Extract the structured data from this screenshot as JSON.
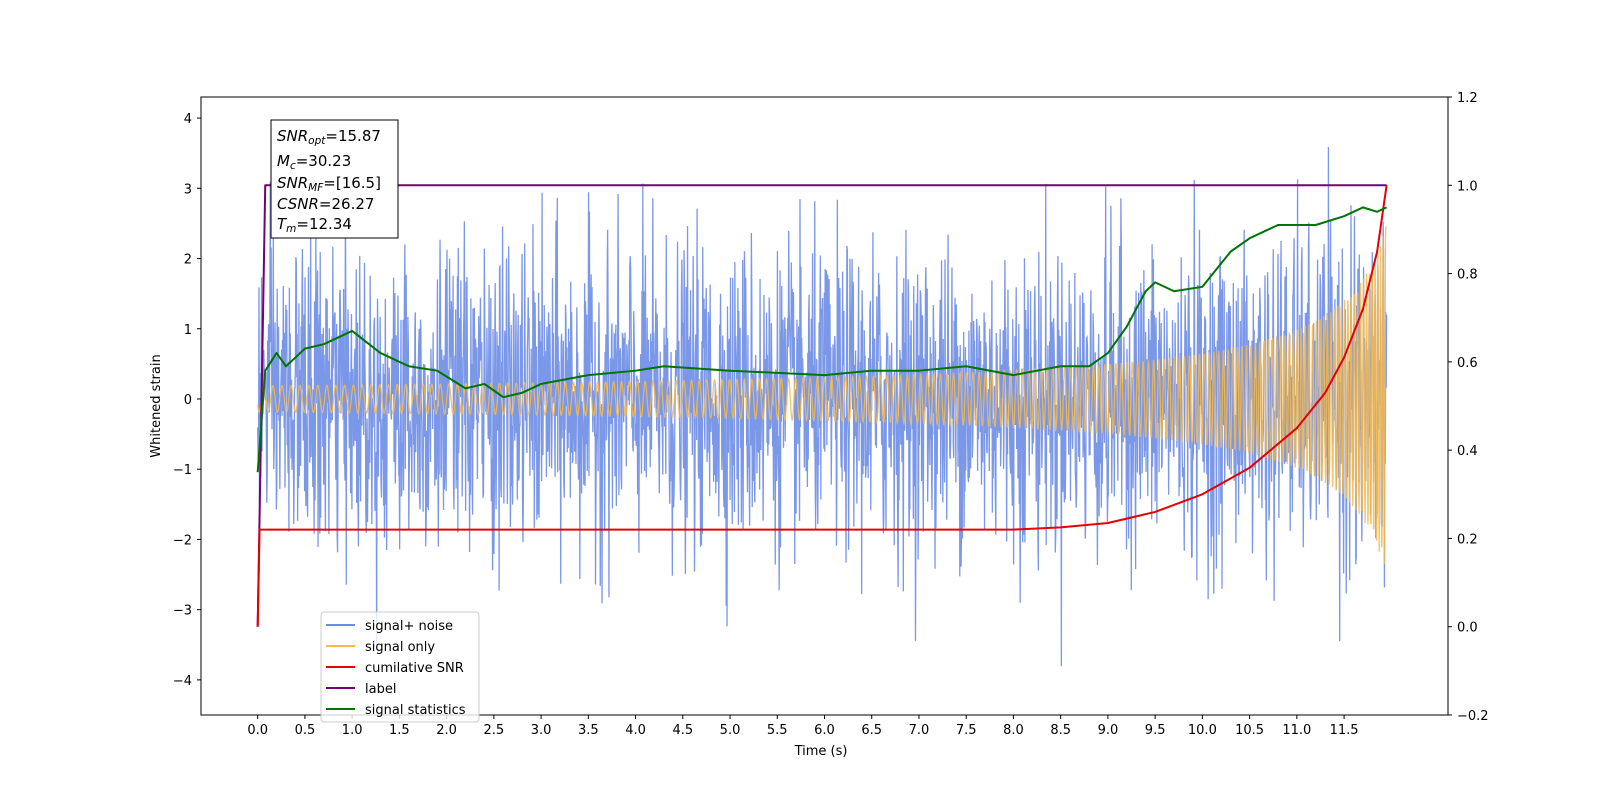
{
  "chart_data": {
    "type": "line",
    "xlabel": "Time (s)",
    "ylabel": "Whitened strain",
    "xlim": [
      -0.6,
      12.6
    ],
    "ylim": [
      -4.5,
      4.3
    ],
    "y2lim": [
      -0.2,
      1.2
    ],
    "grid": false,
    "legend_position": "lower-left",
    "x_ticks": [
      "0.0",
      "0.5",
      "1.0",
      "1.5",
      "2.0",
      "2.5",
      "3.0",
      "3.5",
      "4.0",
      "4.5",
      "5.0",
      "5.5",
      "6.0",
      "6.5",
      "7.0",
      "7.5",
      "8.0",
      "8.5",
      "9.0",
      "9.5",
      "10.0",
      "10.5",
      "11.0",
      "11.5"
    ],
    "y_ticks": [
      "4",
      "3",
      "2",
      "1",
      "0",
      "−1",
      "−2",
      "−3",
      "−4"
    ],
    "y2_ticks": [
      "1.2",
      "1.0",
      "0.8",
      "0.6",
      "0.4",
      "0.2",
      "0.0",
      "−0.2"
    ],
    "info_box": {
      "snr_opt_main": "SNR",
      "snr_opt_sub": "opt",
      "snr_opt_val": "=15.87",
      "mc_main": "M",
      "mc_sub": "c",
      "mc_val": "=30.23",
      "snr_mf_main": "SNR",
      "snr_mf_sub": "MF",
      "snr_mf_val": "=[16.5]",
      "csnr_main": "CSNR",
      "csnr_val": "=26.27",
      "tm_main": "T",
      "tm_sub": "m",
      "tm_val": "=12.34"
    },
    "series": [
      {
        "name": "signal+ noise",
        "color": "#6d8ce6",
        "axis": "left",
        "kind": "white noise, std ~1, 0 to 11.95 s",
        "amplitude_range": [
          -4.1,
          3.9
        ]
      },
      {
        "name": "signal only",
        "color": "#f5b94c",
        "axis": "left",
        "kind": "chirp, amplitude growing to ~2.5 at 11.95 s",
        "amplitude_range": [
          -2.5,
          2.5
        ]
      },
      {
        "name": "cumilative SNR",
        "color": "#e60000",
        "axis": "right",
        "x": [
          0.0,
          0.02,
          0.1,
          1.0,
          3.0,
          5.0,
          7.0,
          8.0,
          8.5,
          9.0,
          9.5,
          10.0,
          10.5,
          11.0,
          11.3,
          11.5,
          11.7,
          11.85,
          11.95
        ],
        "values": [
          0.0,
          0.22,
          0.22,
          0.22,
          0.22,
          0.22,
          0.22,
          0.22,
          0.225,
          0.235,
          0.26,
          0.3,
          0.36,
          0.45,
          0.53,
          0.61,
          0.72,
          0.85,
          1.0
        ]
      },
      {
        "name": "label",
        "color": "#750075",
        "axis": "right",
        "x": [
          0.0,
          0.08,
          11.95
        ],
        "values": [
          0.0,
          1.0,
          1.0
        ]
      },
      {
        "name": "signal statistics",
        "color": "#007300",
        "axis": "right",
        "x": [
          0.0,
          0.08,
          0.2,
          0.3,
          0.4,
          0.5,
          0.7,
          1.0,
          1.3,
          1.6,
          1.9,
          2.2,
          2.4,
          2.6,
          2.8,
          3.0,
          3.5,
          4.0,
          4.3,
          5.0,
          6.0,
          6.5,
          7.0,
          7.5,
          8.0,
          8.5,
          8.8,
          9.0,
          9.2,
          9.4,
          9.5,
          9.7,
          10.0,
          10.3,
          10.5,
          10.8,
          11.2,
          11.5,
          11.7,
          11.85,
          11.95
        ],
        "values": [
          0.35,
          0.58,
          0.62,
          0.59,
          0.61,
          0.63,
          0.64,
          0.67,
          0.62,
          0.59,
          0.58,
          0.54,
          0.55,
          0.52,
          0.53,
          0.55,
          0.57,
          0.58,
          0.59,
          0.58,
          0.57,
          0.58,
          0.58,
          0.59,
          0.57,
          0.59,
          0.59,
          0.62,
          0.68,
          0.76,
          0.78,
          0.76,
          0.77,
          0.85,
          0.88,
          0.91,
          0.91,
          0.93,
          0.95,
          0.94,
          0.95
        ]
      }
    ]
  }
}
